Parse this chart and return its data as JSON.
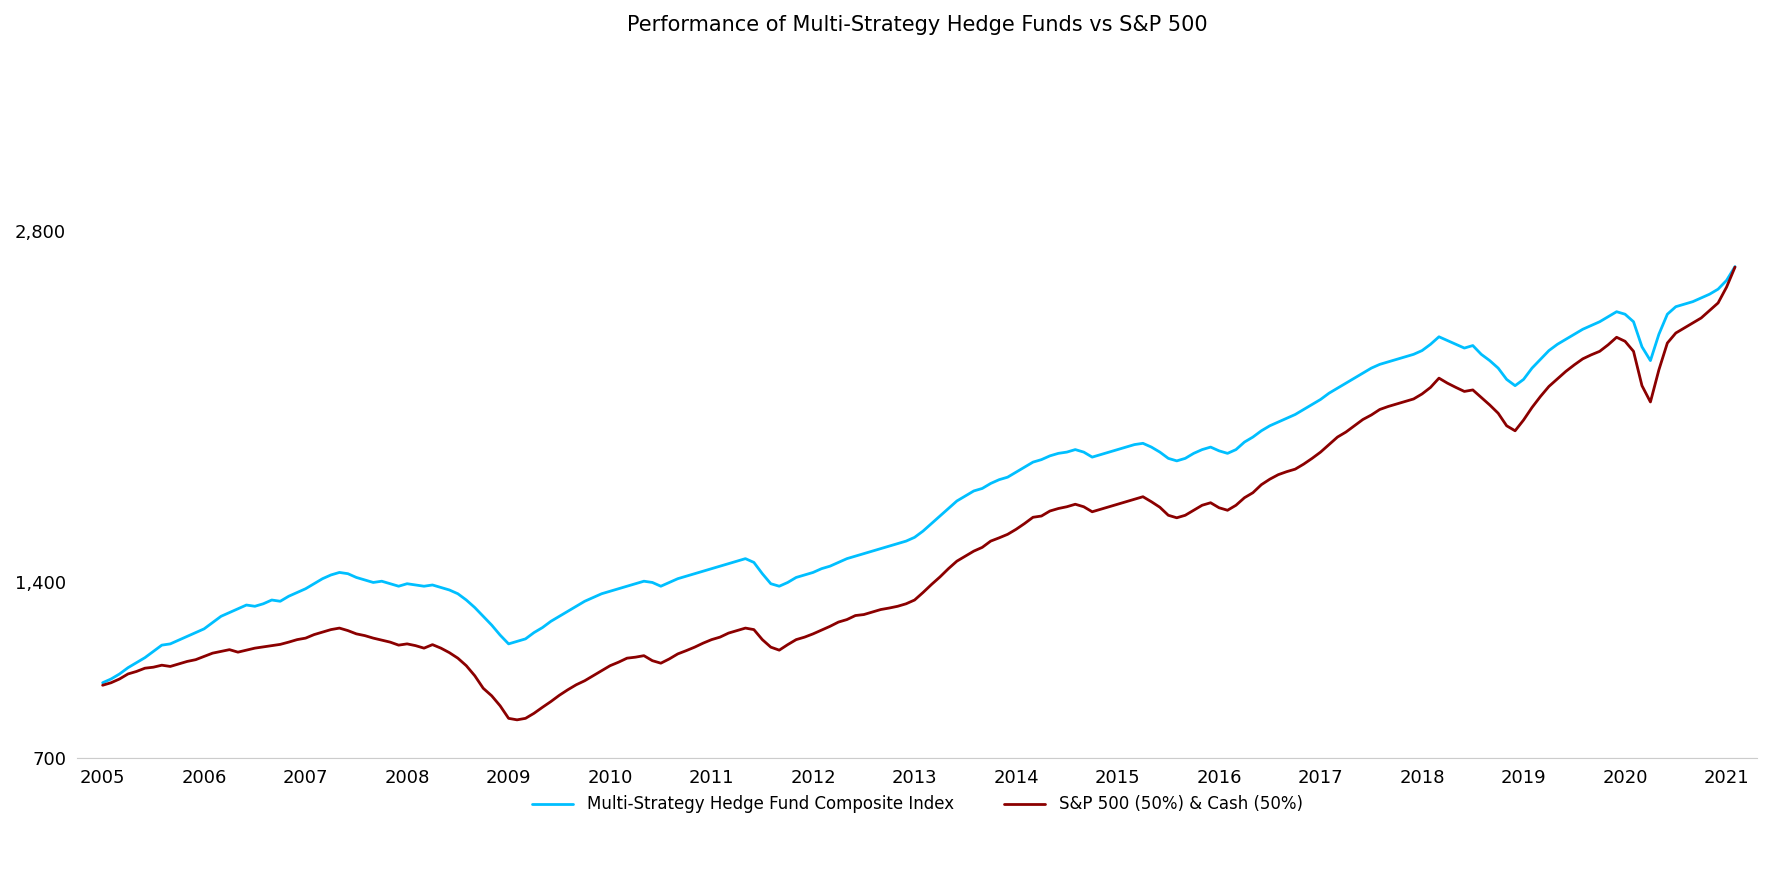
{
  "title": "Performance of Multi-Strategy Hedge Funds vs S&P 500",
  "hedge_fund_label": "Multi-Strategy Hedge Fund Composite Index",
  "sp500_label": "S&P 500 (50%) & Cash (50%)",
  "hedge_fund_color": "#00BFFF",
  "sp500_color": "#8B0000",
  "background_color": "#FFFFFF",
  "ylim": [
    700,
    3500
  ],
  "yticks": [
    700,
    1400,
    2800
  ],
  "ytick_labels": [
    "700",
    "1,400",
    "2,800"
  ],
  "xlim_start": 2004.75,
  "xlim_end": 2021.3,
  "xticks": [
    2005,
    2006,
    2007,
    2008,
    2009,
    2010,
    2011,
    2012,
    2013,
    2014,
    2015,
    2016,
    2017,
    2018,
    2019,
    2020,
    2021
  ],
  "title_fontsize": 15,
  "legend_fontsize": 12,
  "tick_fontsize": 13,
  "line_width": 2.0,
  "hedge_fund_y": [
    1000,
    1015,
    1035,
    1060,
    1080,
    1100,
    1125,
    1150,
    1155,
    1170,
    1185,
    1200,
    1215,
    1240,
    1265,
    1280,
    1295,
    1310,
    1305,
    1315,
    1330,
    1325,
    1345,
    1360,
    1375,
    1395,
    1415,
    1430,
    1440,
    1435,
    1420,
    1410,
    1400,
    1405,
    1395,
    1385,
    1395,
    1390,
    1385,
    1390,
    1380,
    1370,
    1355,
    1330,
    1300,
    1265,
    1230,
    1190,
    1155,
    1165,
    1175,
    1200,
    1220,
    1245,
    1265,
    1285,
    1305,
    1325,
    1340,
    1355,
    1365,
    1375,
    1385,
    1395,
    1405,
    1400,
    1385,
    1400,
    1415,
    1425,
    1435,
    1445,
    1455,
    1465,
    1475,
    1485,
    1495,
    1480,
    1435,
    1395,
    1385,
    1400,
    1420,
    1430,
    1440,
    1455,
    1465,
    1480,
    1495,
    1505,
    1515,
    1525,
    1535,
    1545,
    1555,
    1565,
    1580,
    1605,
    1635,
    1665,
    1695,
    1725,
    1745,
    1765,
    1775,
    1795,
    1810,
    1820,
    1840,
    1860,
    1880,
    1890,
    1905,
    1915,
    1920,
    1930,
    1920,
    1900,
    1910,
    1920,
    1930,
    1940,
    1950,
    1955,
    1940,
    1920,
    1895,
    1885,
    1895,
    1915,
    1930,
    1940,
    1925,
    1915,
    1930,
    1960,
    1980,
    2005,
    2025,
    2040,
    2055,
    2070,
    2090,
    2110,
    2130,
    2155,
    2175,
    2195,
    2215,
    2235,
    2255,
    2270,
    2280,
    2290,
    2300,
    2310,
    2325,
    2350,
    2380,
    2365,
    2350,
    2335,
    2345,
    2310,
    2285,
    2255,
    2210,
    2185,
    2210,
    2255,
    2290,
    2325,
    2350,
    2370,
    2390,
    2410,
    2425,
    2440,
    2460,
    2480,
    2470,
    2440,
    2340,
    2285,
    2390,
    2470,
    2500,
    2510,
    2520,
    2535,
    2550,
    2570,
    2605,
    2660
  ],
  "sp500_y": [
    990,
    1000,
    1015,
    1035,
    1045,
    1058,
    1062,
    1070,
    1065,
    1075,
    1085,
    1092,
    1105,
    1118,
    1125,
    1132,
    1122,
    1130,
    1138,
    1143,
    1148,
    1153,
    1162,
    1172,
    1178,
    1192,
    1202,
    1212,
    1218,
    1208,
    1195,
    1188,
    1178,
    1170,
    1162,
    1150,
    1155,
    1148,
    1138,
    1152,
    1138,
    1120,
    1098,
    1068,
    1028,
    978,
    948,
    908,
    858,
    852,
    858,
    878,
    902,
    925,
    950,
    972,
    992,
    1008,
    1028,
    1048,
    1068,
    1082,
    1098,
    1102,
    1108,
    1088,
    1078,
    1095,
    1115,
    1128,
    1142,
    1158,
    1172,
    1182,
    1198,
    1208,
    1218,
    1212,
    1172,
    1142,
    1130,
    1152,
    1172,
    1182,
    1195,
    1210,
    1225,
    1242,
    1252,
    1268,
    1272,
    1282,
    1292,
    1298,
    1305,
    1315,
    1330,
    1360,
    1392,
    1422,
    1455,
    1485,
    1505,
    1525,
    1540,
    1565,
    1578,
    1592,
    1612,
    1635,
    1660,
    1665,
    1685,
    1695,
    1702,
    1712,
    1702,
    1682,
    1692,
    1702,
    1712,
    1722,
    1732,
    1742,
    1722,
    1700,
    1668,
    1658,
    1668,
    1688,
    1708,
    1718,
    1698,
    1688,
    1708,
    1738,
    1758,
    1790,
    1812,
    1830,
    1842,
    1852,
    1872,
    1895,
    1920,
    1950,
    1980,
    2000,
    2025,
    2050,
    2068,
    2090,
    2102,
    2112,
    2122,
    2132,
    2152,
    2178,
    2215,
    2195,
    2178,
    2162,
    2168,
    2138,
    2108,
    2075,
    2025,
    2005,
    2048,
    2098,
    2142,
    2182,
    2212,
    2242,
    2268,
    2292,
    2308,
    2322,
    2348,
    2378,
    2362,
    2322,
    2185,
    2120,
    2248,
    2355,
    2395,
    2415,
    2435,
    2455,
    2485,
    2515,
    2578,
    2658
  ]
}
